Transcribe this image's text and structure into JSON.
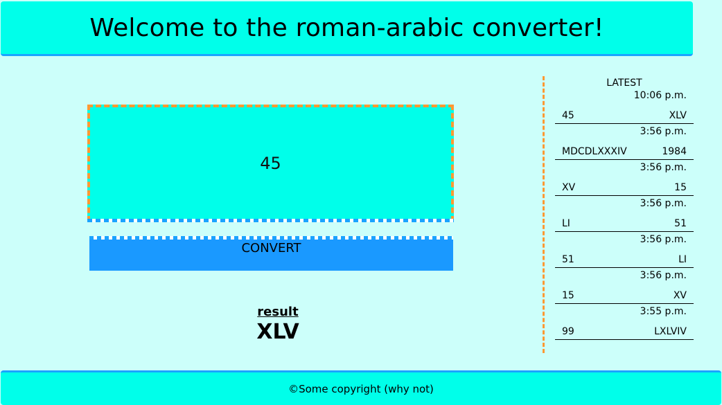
{
  "header": {
    "title": "Welcome to the roman-arabic converter!"
  },
  "converter": {
    "input_value": "45",
    "convert_label": "CONVERT",
    "result_label": "result",
    "result_value": "XLV"
  },
  "sidebar": {
    "title": "LATEST",
    "entries": [
      {
        "time": "10:06 p.m.",
        "input": "45",
        "output": "XLV"
      },
      {
        "time": "3:56 p.m.",
        "input": "MDCDLXXXIV",
        "output": "1984"
      },
      {
        "time": "3:56 p.m.",
        "input": "XV",
        "output": "15"
      },
      {
        "time": "3:56 p.m.",
        "input": "LI",
        "output": "51"
      },
      {
        "time": "3:56 p.m.",
        "input": "51",
        "output": "LI"
      },
      {
        "time": "3:56 p.m.",
        "input": "15",
        "output": "XV"
      },
      {
        "time": "3:55 p.m.",
        "input": "99",
        "output": "LXLVIV"
      }
    ]
  },
  "footer": {
    "text": "©Some copyright (why not)"
  },
  "colors": {
    "background": "#ccfffa",
    "accent": "#00ffea",
    "button": "#1a99ff",
    "dashed_border": "#ff9933"
  }
}
